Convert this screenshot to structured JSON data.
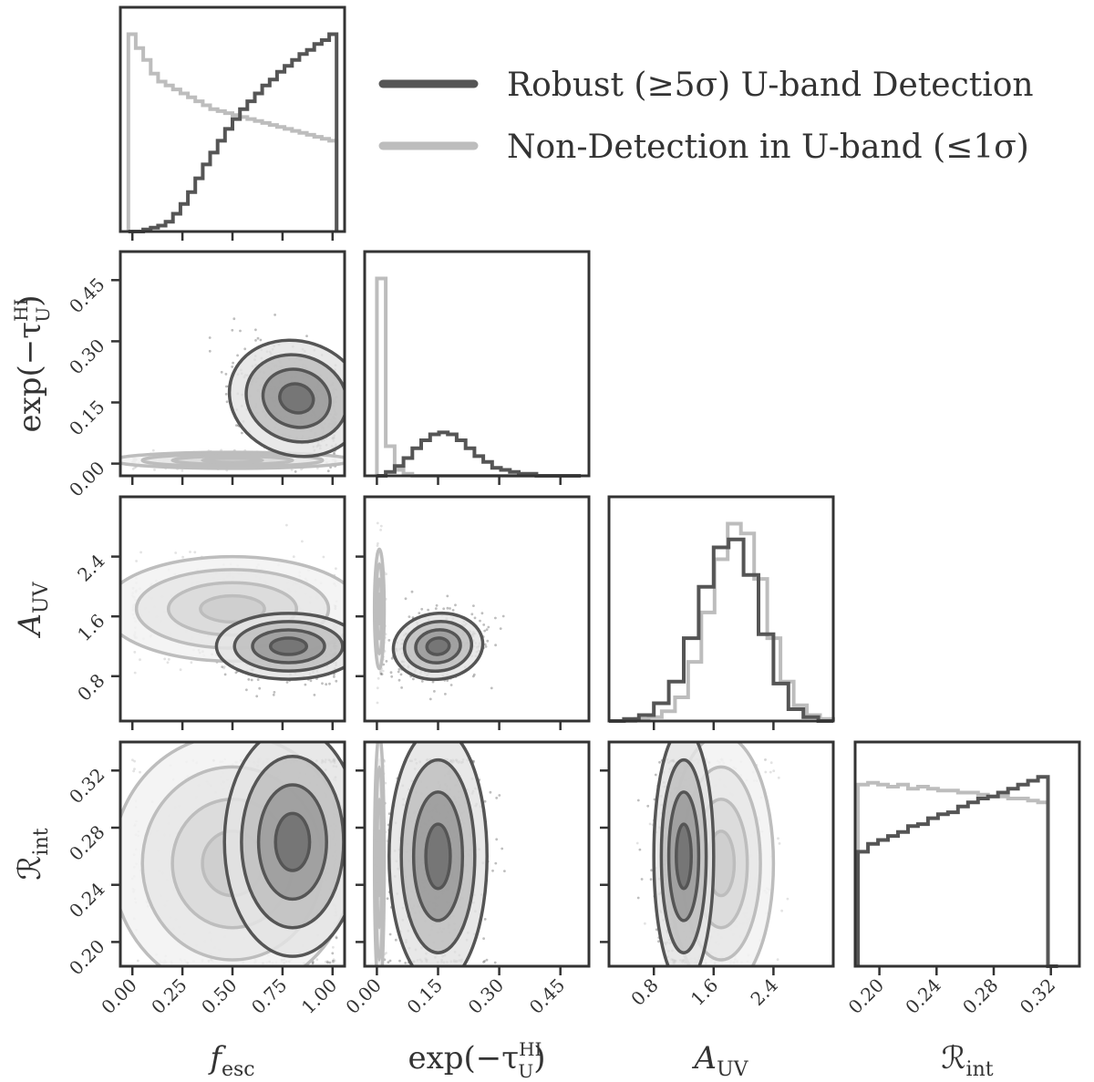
{
  "legend": {
    "robust_label": "Robust (≥5σ) U-band Detection",
    "nondet_label": "Non-Detection in U-band (≤1σ)",
    "robust_color": "#555555",
    "nondet_color": "#bdbdbd"
  },
  "colors": {
    "axes": "#333333",
    "scatter": "#444444",
    "scatter_light": "#c8c8c8"
  },
  "params": [
    {
      "key": "fesc",
      "label": "f",
      "sub": "esc",
      "ticks": [
        0.0,
        0.25,
        0.5,
        0.75,
        1.0
      ],
      "tick_labels": [
        "0.00",
        "0.25",
        "0.50",
        "0.75",
        "1.00"
      ],
      "range": [
        -0.06,
        1.06
      ]
    },
    {
      "key": "exptau",
      "label": "exp(−τ",
      "sup": "HI",
      "sub": "U",
      "tail": ")",
      "ticks": [
        0.0,
        0.15,
        0.3,
        0.45
      ],
      "tick_labels": [
        "0.00",
        "0.15",
        "0.30",
        "0.45"
      ],
      "range": [
        -0.03,
        0.52
      ]
    },
    {
      "key": "auv",
      "label": "A",
      "sub": "UV",
      "ticks": [
        0.8,
        1.6,
        2.4
      ],
      "tick_labels": [
        "0.8",
        "1.6",
        "2.4"
      ],
      "range": [
        0.2,
        3.2
      ]
    },
    {
      "key": "rint",
      "label": "ℛ",
      "sub": "int",
      "ticks": [
        0.2,
        0.24,
        0.28,
        0.32
      ],
      "tick_labels": [
        "0.20",
        "0.24",
        "0.28",
        "0.32"
      ],
      "range": [
        0.183,
        0.34
      ]
    }
  ],
  "chart_data": {
    "type": "corner",
    "series": [
      {
        "name": "Robust (≥5σ) U-band Detection",
        "hist": {
          "fesc": [
            0.0,
            0.0,
            0.01,
            0.02,
            0.03,
            0.05,
            0.09,
            0.14,
            0.2,
            0.27,
            0.34,
            0.4,
            0.46,
            0.52,
            0.57,
            0.62,
            0.66,
            0.7,
            0.74,
            0.77,
            0.81,
            0.84,
            0.87,
            0.9,
            0.92,
            0.95,
            0.97,
            1.0
          ],
          "exptau": [
            0.0,
            0.02,
            0.05,
            0.09,
            0.14,
            0.18,
            0.21,
            0.22,
            0.21,
            0.18,
            0.14,
            0.1,
            0.07,
            0.04,
            0.03,
            0.02,
            0.01,
            0.01,
            0.0,
            0.0,
            0.0,
            0.0,
            0.0
          ],
          "auv": [
            0.0,
            0.01,
            0.03,
            0.09,
            0.2,
            0.42,
            0.68,
            0.88,
            0.92,
            0.74,
            0.44,
            0.19,
            0.06,
            0.02,
            0.0
          ],
          "rint": [
            0.58,
            0.62,
            0.64,
            0.66,
            0.68,
            0.71,
            0.72,
            0.75,
            0.77,
            0.78,
            0.81,
            0.83,
            0.85,
            0.86,
            0.88,
            0.9,
            0.92,
            0.94,
            0.96,
            0.0
          ]
        }
      },
      {
        "name": "Non-Detection in U-band (≤1σ)",
        "hist": {
          "fesc": [
            1.0,
            0.93,
            0.87,
            0.8,
            0.76,
            0.74,
            0.72,
            0.7,
            0.68,
            0.66,
            0.64,
            0.62,
            0.61,
            0.6,
            0.59,
            0.58,
            0.57,
            0.56,
            0.55,
            0.54,
            0.53,
            0.52,
            0.51,
            0.5,
            0.49,
            0.48,
            0.47,
            0.46
          ],
          "exptau": [
            1.0,
            0.15,
            0.03,
            0.01,
            0.0,
            0.0,
            0.0,
            0.0,
            0.0,
            0.0,
            0.0,
            0.0,
            0.0,
            0.0,
            0.0,
            0.0,
            0.0,
            0.0,
            0.0,
            0.0,
            0.0,
            0.0,
            0.0
          ],
          "auv": [
            0.0,
            0.0,
            0.01,
            0.02,
            0.05,
            0.12,
            0.3,
            0.55,
            0.82,
            1.0,
            0.95,
            0.72,
            0.42,
            0.2,
            0.08,
            0.03,
            0.01
          ],
          "rint": [
            0.92,
            0.93,
            0.92,
            0.91,
            0.92,
            0.9,
            0.91,
            0.9,
            0.89,
            0.89,
            0.88,
            0.88,
            0.87,
            0.86,
            0.86,
            0.85,
            0.85,
            0.84,
            0.83,
            0.0
          ]
        }
      }
    ],
    "x_axis_labels": [
      "f_esc",
      "exp(−τ_U^HI)",
      "A_UV",
      "ℛ_int"
    ],
    "y_axis_labels": [
      "exp(−τ_U^HI)",
      "A_UV",
      "ℛ_int"
    ]
  }
}
